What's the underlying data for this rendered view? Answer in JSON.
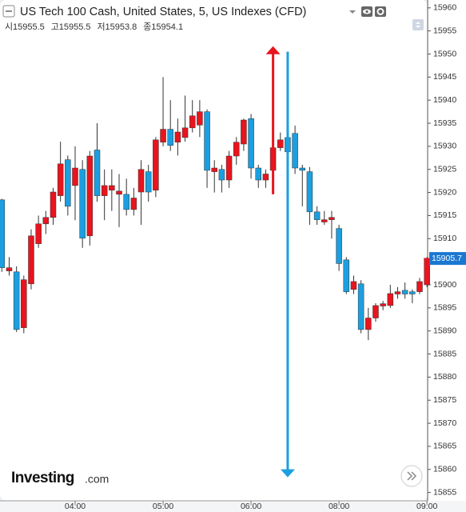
{
  "chart_data": {
    "type": "candlestick",
    "title": "US Tech 100 Cash, United States, 5, US Indexes (CFD)",
    "ohlc_header": [
      {
        "label": "시",
        "value": 15955.5
      },
      {
        "label": "고",
        "value": 15955.5
      },
      {
        "label": "저",
        "value": 15953.8
      },
      {
        "label": "종",
        "value": 15954.1
      }
    ],
    "x": [
      "03:10",
      "03:15",
      "03:20",
      "03:25",
      "03:30",
      "03:35",
      "03:40",
      "03:45",
      "03:50",
      "03:55",
      "04:00",
      "04:05",
      "04:10",
      "04:15",
      "04:20",
      "04:25",
      "04:30",
      "04:35",
      "04:40",
      "04:45",
      "04:50",
      "04:55",
      "05:00",
      "05:05",
      "05:10",
      "05:15",
      "05:20",
      "05:25",
      "05:30",
      "05:35",
      "05:40",
      "05:45",
      "05:50",
      "05:55",
      "06:00",
      "06:05",
      "06:10",
      "06:15",
      "06:20",
      "06:25",
      "06:30",
      "06:35",
      "06:40",
      "06:45",
      "06:50",
      "06:55",
      "08:00",
      "08:05",
      "08:10",
      "08:15",
      "08:20",
      "08:25",
      "08:30",
      "08:35",
      "08:40",
      "08:45",
      "08:50",
      "08:55",
      "09:00"
    ],
    "open": [
      15918.4,
      15903.0,
      15902.8,
      15890.7,
      15900.2,
      15908.9,
      15913.2,
      15914.6,
      15919.3,
      15927.1,
      15921.5,
      15925.0,
      15910.6,
      15929.2,
      15919.3,
      15920.5,
      15919.6,
      15919.6,
      15916.3,
      15920.1,
      15924.5,
      15920.5,
      15930.9,
      15933.7,
      15930.9,
      15931.9,
      15934.0,
      15934.6,
      15937.5,
      15924.5,
      15925.0,
      15922.7,
      15927.9,
      15930.5,
      15936.0,
      15925.3,
      15922.7,
      15924.8,
      15929.7,
      15931.9,
      15932.8,
      15925.3,
      15924.5,
      15915.8,
      15913.6,
      15914.1,
      15912.2,
      15905.4,
      15899.0,
      15900.2,
      15890.3,
      15892.8,
      15895.4,
      15895.5,
      15898.0,
      15898.8,
      15898.5,
      15898.5,
      15900.0
    ],
    "high": [
      15918.6,
      15906,
      15904,
      15902,
      15912,
      15915,
      15916,
      15921,
      15931,
      15928,
      15930,
      15927,
      15929,
      15935,
      15925,
      15925,
      15924,
      15923,
      15921,
      15927,
      15926,
      15932,
      15945,
      15940,
      15936,
      15941,
      15940,
      15940,
      15938,
      15927,
      15926,
      15929,
      15932,
      15936,
      15937,
      15926,
      15925,
      15933,
      15933,
      15933,
      15934.5,
      15926,
      15925.5,
      15917,
      15916,
      15916,
      15913,
      15906,
      15902,
      15901,
      15895,
      15896,
      15896.5,
      15900,
      15899.5,
      15900.5,
      15899,
      15901.5,
      15906
    ],
    "low": [
      15902.8,
      15902,
      15889.8,
      15889.5,
      15899,
      15908,
      15911,
      15913,
      15918,
      15915,
      15914,
      15908,
      15908.5,
      15918,
      15914,
      15916,
      15912.5,
      15915,
      15915,
      15913,
      15918,
      15919,
      15930,
      15929,
      15928,
      15931,
      15933,
      15932,
      15921,
      15920,
      15920,
      15921,
      15926,
      15929,
      15923,
      15921,
      15921,
      15924,
      15929,
      15927,
      15924,
      15917,
      15913,
      15913,
      15913,
      15910,
      15903,
      15898,
      15898,
      15889.5,
      15888,
      15892,
      15894.5,
      15895,
      15897,
      15897,
      15896,
      15898,
      15899.5
    ],
    "close": [
      15903.7,
      15903.7,
      15890.3,
      15901.1,
      15910.6,
      15913.2,
      15914.6,
      15920.1,
      15926.2,
      15917.0,
      15925.3,
      15910.1,
      15927.9,
      15919.3,
      15921.5,
      15921.5,
      15920.3,
      15916.3,
      15918.8,
      15925.0,
      15920.1,
      15931.4,
      15933.7,
      15930.2,
      15933.1,
      15934.0,
      15936.6,
      15937.5,
      15924.8,
      15925.3,
      15922.7,
      15927.9,
      15930.9,
      15935.7,
      15925.3,
      15922.7,
      15924.0,
      15929.7,
      15931.4,
      15928.8,
      15925.3,
      15924.8,
      15915.8,
      15914.1,
      15914.1,
      15914.6,
      15904.6,
      15898.5,
      15900.7,
      15890.3,
      15892.8,
      15895.5,
      15895.9,
      15898.1,
      15898.5,
      15898.0,
      15898.0,
      15900.7,
      15905.7
    ],
    "up_color": "#e8141e",
    "down_color": "#1b9fe0",
    "ylim": [
      15853.2,
      15961.7
    ],
    "yticks": [
      15855,
      15860,
      15865,
      15870,
      15875,
      15880,
      15885,
      15890,
      15895,
      15900,
      15905,
      15910,
      15915,
      15920,
      15925,
      15930,
      15935,
      15940,
      15945,
      15950,
      15955,
      15960
    ],
    "xticks": [
      "04:00",
      "05:00",
      "06:00",
      "08:00",
      "09:00"
    ],
    "last_price": 15905.7,
    "arrows": [
      {
        "x": "06:15",
        "from": 15919.6,
        "to": 15951.7,
        "color": "#e8141e"
      },
      {
        "x": "06:25",
        "from": 15950.5,
        "to": 15858.3,
        "color": "#1b9fe0"
      }
    ],
    "logo": {
      "name": "Investing",
      "suffix": ".com"
    }
  }
}
